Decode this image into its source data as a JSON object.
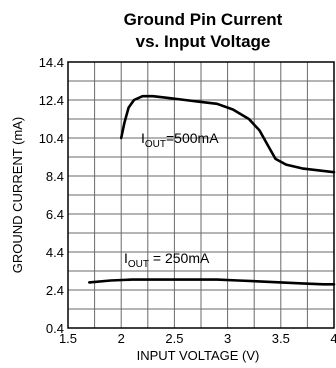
{
  "chart_data": {
    "type": "line",
    "title": "Ground Pin Current",
    "subtitle": "vs. Input Voltage",
    "xlabel": "INPUT VOLTAGE (V)",
    "ylabel": "GROUND CURRENT (mA)",
    "xlim": [
      1.5,
      4
    ],
    "ylim": [
      0.4,
      14.4
    ],
    "x_ticks": [
      1.5,
      2,
      2.5,
      3,
      3.5,
      4
    ],
    "x_tick_labels": [
      "1.5",
      "2",
      "2.5",
      "3",
      "3.5",
      "4"
    ],
    "y_ticks": [
      0.4,
      2.4,
      4.4,
      6.4,
      8.4,
      10.4,
      12.4,
      14.4
    ],
    "y_tick_labels": [
      "0.4",
      "2.4",
      "4.4",
      "6.4",
      "8.4",
      "10.4",
      "12.4",
      "14.4"
    ],
    "grid": true,
    "series": [
      {
        "name_parts": [
          "I",
          "OUT",
          "=500mA"
        ],
        "x": [
          2.0,
          2.03,
          2.07,
          2.12,
          2.2,
          2.3,
          2.45,
          2.6,
          2.75,
          2.9,
          3.05,
          3.2,
          3.3,
          3.38,
          3.45,
          3.55,
          3.7,
          3.85,
          4.0
        ],
        "y": [
          10.4,
          11.2,
          12.0,
          12.4,
          12.6,
          12.6,
          12.5,
          12.4,
          12.3,
          12.2,
          11.9,
          11.4,
          10.8,
          10.0,
          9.3,
          9.0,
          8.8,
          8.7,
          8.6
        ]
      },
      {
        "name_parts": [
          "I",
          "OUT",
          " = 250mA"
        ],
        "x": [
          1.7,
          1.9,
          2.1,
          2.3,
          2.5,
          2.7,
          2.9,
          3.1,
          3.3,
          3.5,
          3.7,
          3.9,
          4.0
        ],
        "y": [
          2.8,
          2.9,
          2.95,
          2.95,
          2.95,
          2.95,
          2.95,
          2.9,
          2.85,
          2.8,
          2.75,
          2.7,
          2.7
        ]
      }
    ]
  }
}
